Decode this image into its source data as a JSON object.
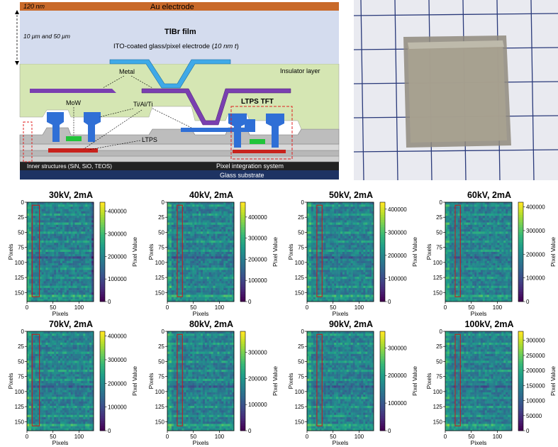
{
  "schematic": {
    "labels": {
      "thickness_top": "120 nm",
      "au_electrode": "Au electrode",
      "tlbr_thickness": "10 μm and 50 μm",
      "tlbr_film": "TlBr film",
      "ito_label_main": "ITO-coated glass/pixel electrode (",
      "ito_label_italic": "10 nm t",
      "ito_label_end": ")",
      "insulator": "Insulator layer",
      "metal": "Metal",
      "mow": "MoW",
      "tialti": "Ti/Al/Ti",
      "ltps_tft": "LTPS TFT",
      "ltps": "LTPS",
      "inner_structures": "Inner structures (SiN, SiO, TEOS)",
      "pixel_integration": "Pixel integration system",
      "glass_substrate": "Glass substrate"
    },
    "colors": {
      "au": "#c96a2a",
      "tlbr": "#d4dcee",
      "ito": "#3fa9e8",
      "insulator": "#d5e6b3",
      "metal": "#7a3fb0",
      "gate": "#2f6fd6",
      "mow": "#22c43a",
      "ltps": "#c8221c",
      "inner_dark": "#333333",
      "glass": "#1e3363"
    }
  },
  "photo": {
    "grid_color": "#2a3a7a",
    "paper_color": "#e9eaf0",
    "sample_color": "#a9a290"
  },
  "chart_data": [
    {
      "type": "heatmap",
      "title": "30kV, 2mA",
      "xlabel": "Pixels",
      "ylabel": "Pixels",
      "cbar_label": "Pixel Value",
      "cbar_ticks": [
        0,
        100000,
        200000,
        300000,
        400000
      ],
      "cbar_max": 440000,
      "x_ticks": [
        0,
        50,
        100
      ],
      "y_ticks": [
        0,
        25,
        50,
        75,
        100,
        125,
        150
      ],
      "x_range": [
        0,
        128
      ],
      "y_range": [
        0,
        165
      ],
      "roi": {
        "x0": 10,
        "x1": 24,
        "y0": 5,
        "y1": 157
      }
    },
    {
      "type": "heatmap",
      "title": "40kV, 2mA",
      "xlabel": "Pixels",
      "ylabel": "Pixels",
      "cbar_label": "Pixel Value",
      "cbar_ticks": [
        0,
        100000,
        200000,
        300000,
        400000
      ],
      "cbar_max": 470000,
      "x_ticks": [
        0,
        50,
        100
      ],
      "y_ticks": [
        0,
        25,
        50,
        75,
        100,
        125,
        150
      ],
      "x_range": [
        0,
        128
      ],
      "y_range": [
        0,
        165
      ],
      "roi": {
        "x0": 19,
        "x1": 29,
        "y0": 5,
        "y1": 157
      }
    },
    {
      "type": "heatmap",
      "title": "50kV, 2mA",
      "xlabel": "Pixels",
      "ylabel": "Pixels",
      "cbar_label": "Pixel Value",
      "cbar_ticks": [
        0,
        100000,
        200000,
        300000,
        400000
      ],
      "cbar_max": 430000,
      "x_ticks": [
        0,
        50,
        100
      ],
      "y_ticks": [
        0,
        25,
        50,
        75,
        100,
        125,
        150
      ],
      "x_range": [
        0,
        128
      ],
      "y_range": [
        0,
        165
      ],
      "roi": {
        "x0": 19,
        "x1": 29,
        "y0": 5,
        "y1": 157
      }
    },
    {
      "type": "heatmap",
      "title": "60kV, 2mA",
      "xlabel": "Pixels",
      "ylabel": "Pixels",
      "cbar_label": "Pixel Value",
      "cbar_ticks": [
        0,
        100000,
        200000,
        300000,
        400000
      ],
      "cbar_max": 420000,
      "x_ticks": [
        0,
        50,
        100
      ],
      "y_ticks": [
        0,
        25,
        50,
        75,
        100,
        125,
        150
      ],
      "x_range": [
        0,
        128
      ],
      "y_range": [
        0,
        165
      ],
      "roi": {
        "x0": 19,
        "x1": 29,
        "y0": 5,
        "y1": 157
      }
    },
    {
      "type": "heatmap",
      "title": "70kV, 2mA",
      "xlabel": "Pixels",
      "ylabel": "Pixels",
      "cbar_label": "Pixel Value",
      "cbar_ticks": [
        0,
        100000,
        200000,
        300000,
        400000
      ],
      "cbar_max": 420000,
      "x_ticks": [
        0,
        50,
        100
      ],
      "y_ticks": [
        0,
        25,
        50,
        75,
        100,
        125,
        150
      ],
      "x_range": [
        0,
        128
      ],
      "y_range": [
        0,
        165
      ],
      "roi": {
        "x0": 10,
        "x1": 24,
        "y0": 5,
        "y1": 157
      }
    },
    {
      "type": "heatmap",
      "title": "80kV, 2mA",
      "xlabel": "Pixels",
      "ylabel": "Pixels",
      "cbar_label": "Pixel Value",
      "cbar_ticks": [
        0,
        100000,
        200000,
        300000
      ],
      "cbar_max": 380000,
      "x_ticks": [
        0,
        50,
        100
      ],
      "y_ticks": [
        0,
        25,
        50,
        75,
        100,
        125,
        150
      ],
      "x_range": [
        0,
        128
      ],
      "y_range": [
        0,
        165
      ],
      "roi": {
        "x0": 19,
        "x1": 29,
        "y0": 5,
        "y1": 157
      }
    },
    {
      "type": "heatmap",
      "title": "90kV, 2mA",
      "xlabel": "Pixels",
      "ylabel": "Pixels",
      "cbar_label": "Pixel Value",
      "cbar_ticks": [
        0,
        100000,
        200000,
        300000
      ],
      "cbar_max": 360000,
      "x_ticks": [
        0,
        50,
        100
      ],
      "y_ticks": [
        0,
        25,
        50,
        75,
        100,
        125,
        150
      ],
      "x_range": [
        0,
        128
      ],
      "y_range": [
        0,
        165
      ],
      "roi": {
        "x0": 19,
        "x1": 29,
        "y0": 5,
        "y1": 157
      }
    },
    {
      "type": "heatmap",
      "title": "100kV, 2mA",
      "xlabel": "Pixels",
      "ylabel": "Pixels",
      "cbar_label": "Pixel Value",
      "cbar_ticks": [
        0,
        50000,
        100000,
        150000,
        200000,
        250000,
        300000
      ],
      "cbar_max": 330000,
      "x_ticks": [
        0,
        50,
        100
      ],
      "y_ticks": [
        0,
        25,
        50,
        75,
        100,
        125,
        150
      ],
      "x_range": [
        0,
        128
      ],
      "y_range": [
        0,
        165
      ],
      "roi": {
        "x0": 19,
        "x1": 29,
        "y0": 5,
        "y1": 157
      }
    }
  ]
}
